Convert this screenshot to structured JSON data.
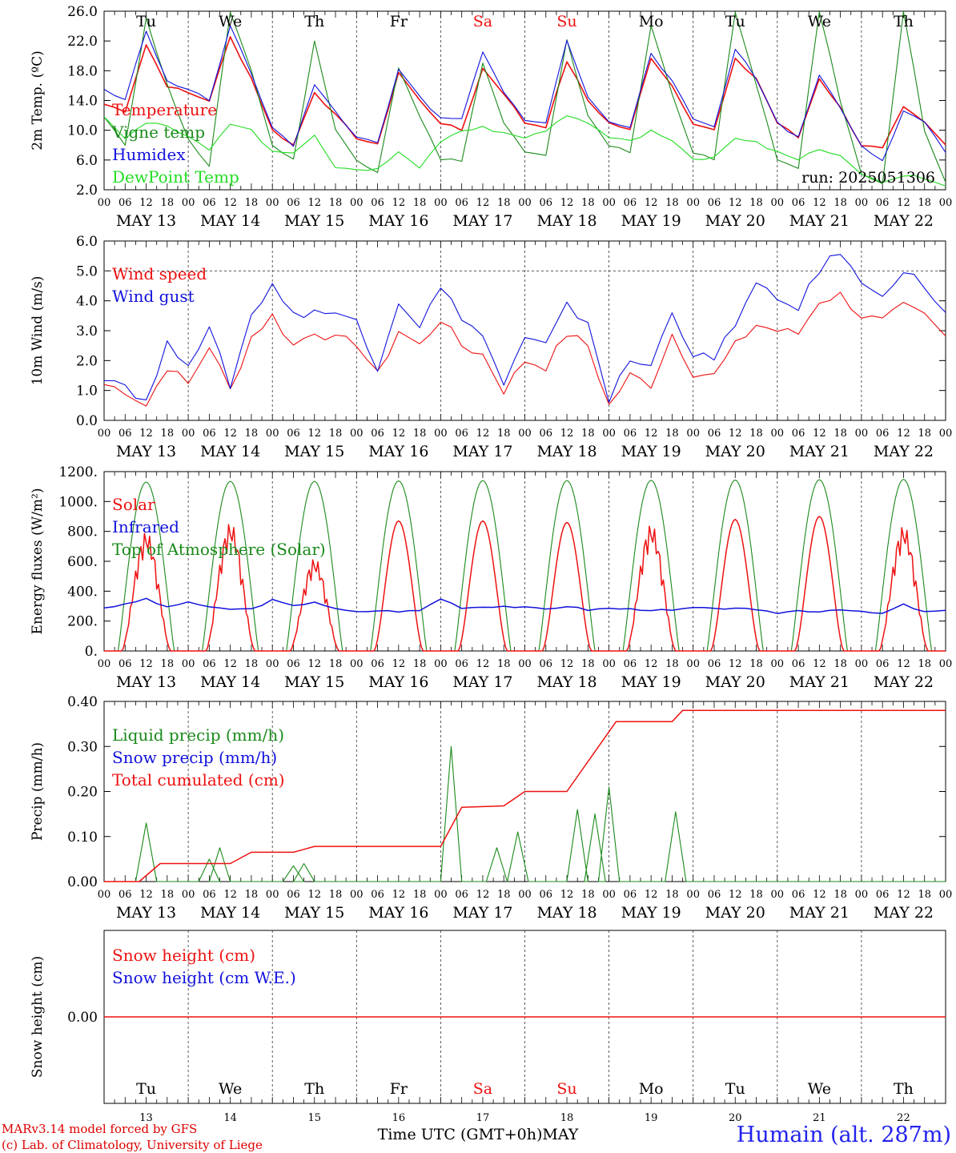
{
  "day_labels": [
    "Tu",
    "We",
    "Th",
    "Fr",
    "Sa",
    "Su",
    "Mo",
    "Tu",
    "We",
    "Th"
  ],
  "weekend_days": [
    "Sa",
    "Su"
  ],
  "date_labels": [
    "MAY 13",
    "MAY 14",
    "MAY 15",
    "MAY 16",
    "MAY 17",
    "MAY 18",
    "MAY 19",
    "MAY 20",
    "MAY 21",
    "MAY 22"
  ],
  "day_numbers": [
    "13",
    "14",
    "15",
    "16",
    "17",
    "18",
    "19",
    "20",
    "21",
    "22"
  ],
  "hour_ticks": [
    "00",
    "06",
    "12",
    "18"
  ],
  "colors": {
    "red": "#ee1111",
    "green": "#1a8a1a",
    "blue": "#1111dd",
    "lightgreen": "#22dd22",
    "axis": "#000000",
    "dash": "#666666"
  },
  "footer": {
    "credit1": "MARv3.14 model forced by GFS",
    "credit2": "(c) Lab. of Climatology, University of Liege",
    "xtitle": "Time UTC (GMT+0h)MAY",
    "station": "Humain (alt. 287m)"
  },
  "chart_data": [
    {
      "id": "temp",
      "type": "line",
      "ylabel": "2m Temp. (ºC)",
      "ylim": [
        2,
        26
      ],
      "yticks": [
        "2.0",
        "6.0",
        "10.0",
        "14.0",
        "18.0",
        "22.0",
        "26.0"
      ],
      "annotation": "run: 2025051306",
      "x": "hours since MAY 13 00 UTC (6-hourly)",
      "series": [
        {
          "name": "Temperature",
          "color": "red",
          "values": [
            13.5,
            12.6,
            21.5,
            16.0,
            15.0,
            14.0,
            22.5,
            17.0,
            10.0,
            8.0,
            15.2,
            12.0,
            9.0,
            8.0,
            17.8,
            14.0,
            11.0,
            10.0,
            18.3,
            15.0,
            11.0,
            10.5,
            19.3,
            14.0,
            11.0,
            10.0,
            19.8,
            16.0,
            11.0,
            10.0,
            19.5,
            17.0,
            11.0,
            9.0,
            17.0,
            13.0,
            8.0,
            7.5,
            13.0,
            11.0,
            8.0
          ]
        },
        {
          "name": "Vigne temp",
          "color": "green",
          "values": [
            12.0,
            8.0,
            25.0,
            16.0,
            9.0,
            5.0,
            26.0,
            18.0,
            8.0,
            6.0,
            22.0,
            10.0,
            6.0,
            4.5,
            18.5,
            12.0,
            6.0,
            6.0,
            19.0,
            11.0,
            7.0,
            6.5,
            22.0,
            12.0,
            8.0,
            7.0,
            24.0,
            15.0,
            7.0,
            6.0,
            26.0,
            16.0,
            6.0,
            5.0,
            26.0,
            14.0,
            4.0,
            3.0,
            26.0,
            10.0,
            3.0
          ]
        },
        {
          "name": "Humidex",
          "color": "blue",
          "values": [
            15.5,
            14.0,
            23.5,
            16.5,
            15.5,
            14.0,
            24.0,
            17.5,
            10.5,
            8.0,
            16.0,
            12.5,
            9.0,
            8.5,
            18.0,
            14.5,
            11.5,
            11.5,
            20.5,
            15.0,
            11.5,
            11.0,
            22.0,
            14.5,
            11.0,
            10.5,
            20.5,
            16.5,
            11.5,
            10.5,
            21.0,
            17.0,
            11.0,
            9.0,
            17.5,
            13.0,
            8.0,
            6.0,
            12.5,
            11.0,
            7.0
          ]
        },
        {
          "name": "DewPoint Temp",
          "color": "lightgreen",
          "values": [
            12.0,
            9.0,
            11.0,
            10.5,
            9.0,
            7.5,
            11.0,
            10.0,
            7.0,
            7.0,
            9.5,
            5.0,
            4.5,
            5.0,
            7.0,
            5.0,
            8.5,
            10.0,
            10.5,
            9.5,
            9.0,
            10.0,
            12.0,
            11.0,
            9.0,
            8.5,
            10.0,
            8.5,
            6.0,
            6.5,
            9.0,
            8.5,
            7.0,
            6.0,
            7.5,
            6.5,
            4.0,
            3.0,
            4.0,
            3.5,
            2.5
          ]
        }
      ]
    },
    {
      "id": "wind",
      "type": "line",
      "ylabel": "10m Wind (m/s)",
      "ylim": [
        0,
        6
      ],
      "yticks": [
        "0.0",
        "1.0",
        "2.0",
        "3.0",
        "4.0",
        "5.0",
        "6.0"
      ],
      "refline": 5.0,
      "series": [
        {
          "name": "Wind speed",
          "color": "red",
          "values": [
            1.2,
            1.0,
            0.5,
            1.8,
            1.2,
            2.5,
            1.0,
            2.8,
            3.5,
            2.5,
            3.0,
            2.7,
            2.6,
            1.5,
            3.0,
            2.5,
            3.4,
            2.5,
            2.2,
            1.0,
            2.0,
            1.8,
            2.9,
            2.5,
            0.5,
            1.5,
            1.2,
            2.9,
            1.6,
            1.5,
            2.5,
            3.2,
            3.0,
            2.9,
            4.0,
            4.2,
            3.5,
            3.3,
            3.8,
            3.5,
            2.8
          ]
        },
        {
          "name": "Wind gust",
          "color": "blue",
          "values": [
            1.5,
            1.2,
            0.6,
            2.5,
            2.0,
            3.0,
            1.2,
            3.5,
            4.6,
            3.5,
            3.7,
            3.5,
            3.4,
            1.8,
            4.0,
            3.2,
            4.4,
            3.5,
            2.8,
            1.2,
            2.7,
            2.5,
            3.8,
            3.3,
            0.7,
            2.0,
            1.8,
            3.7,
            2.2,
            2.0,
            3.3,
            4.5,
            4.0,
            3.8,
            5.0,
            5.7,
            4.5,
            4.3,
            5.0,
            4.5,
            3.6
          ]
        }
      ]
    },
    {
      "id": "energy",
      "type": "line",
      "ylabel": "Energy fluxes (W/m²)",
      "ylim": [
        0,
        1200
      ],
      "yticks": [
        "0.",
        "200.",
        "400.",
        "600.",
        "800.",
        "1000.",
        "1200."
      ],
      "series": [
        {
          "name": "Solar",
          "color": "red",
          "peaks": [
            800,
            860,
            620,
            870,
            870,
            860,
            850,
            880,
            900,
            840
          ]
        },
        {
          "name": "Infrared",
          "color": "blue",
          "values": [
            290,
            310,
            350,
            290,
            330,
            290,
            280,
            280,
            340,
            300,
            330,
            280,
            260,
            270,
            265,
            270,
            350,
            290,
            295,
            300,
            290,
            280,
            300,
            275,
            285,
            280,
            275,
            270,
            290,
            280,
            290,
            270,
            255,
            270,
            265,
            280,
            260,
            250,
            310,
            260,
            270
          ]
        },
        {
          "name": "Top of Atmosphere (Solar)",
          "color": "green",
          "peaks": [
            1130,
            1135,
            1135,
            1138,
            1140,
            1140,
            1142,
            1144,
            1146,
            1148
          ]
        }
      ]
    },
    {
      "id": "precip",
      "type": "line",
      "ylabel": "Precip (mm/h)",
      "ylim": [
        0,
        0.4
      ],
      "yticks": [
        "0.00",
        "0.10",
        "0.20",
        "0.30",
        "0.40"
      ],
      "series": [
        {
          "name": "Liquid precip (mm/h)",
          "color": "green",
          "peaks": [
            [
              12,
              0.13
            ],
            [
              30,
              0.05
            ],
            [
              33,
              0.075
            ],
            [
              54,
              0.035
            ],
            [
              57,
              0.04
            ],
            [
              99,
              0.3
            ],
            [
              112,
              0.075
            ],
            [
              118,
              0.11
            ],
            [
              135,
              0.16
            ],
            [
              140,
              0.15
            ],
            [
              144,
              0.21
            ],
            [
              163,
              0.155
            ]
          ]
        },
        {
          "name": "Snow precip (mm/h)",
          "color": "blue",
          "values": []
        },
        {
          "name": "Total cumulated (cm)",
          "color": "red",
          "steps": [
            [
              0,
              0
            ],
            [
              10,
              0
            ],
            [
              16,
              0.04
            ],
            [
              36,
              0.04
            ],
            [
              42,
              0.065
            ],
            [
              54,
              0.065
            ],
            [
              60,
              0.078
            ],
            [
              96,
              0.078
            ],
            [
              102,
              0.165
            ],
            [
              114,
              0.168
            ],
            [
              120,
              0.2
            ],
            [
              132,
              0.2
            ],
            [
              146,
              0.355
            ],
            [
              162,
              0.355
            ],
            [
              165,
              0.38
            ],
            [
              240,
              0.38
            ]
          ]
        }
      ]
    },
    {
      "id": "snow",
      "type": "line",
      "ylabel": "Snow height (cm)",
      "ylim": [
        -1,
        1
      ],
      "yticks": [
        "0.00"
      ],
      "series": [
        {
          "name": "Snow height (cm)",
          "color": "red",
          "values": [
            0,
            0
          ]
        },
        {
          "name": "Snow height (cm W.E.)",
          "color": "blue",
          "values": [
            0,
            0
          ]
        }
      ]
    }
  ]
}
